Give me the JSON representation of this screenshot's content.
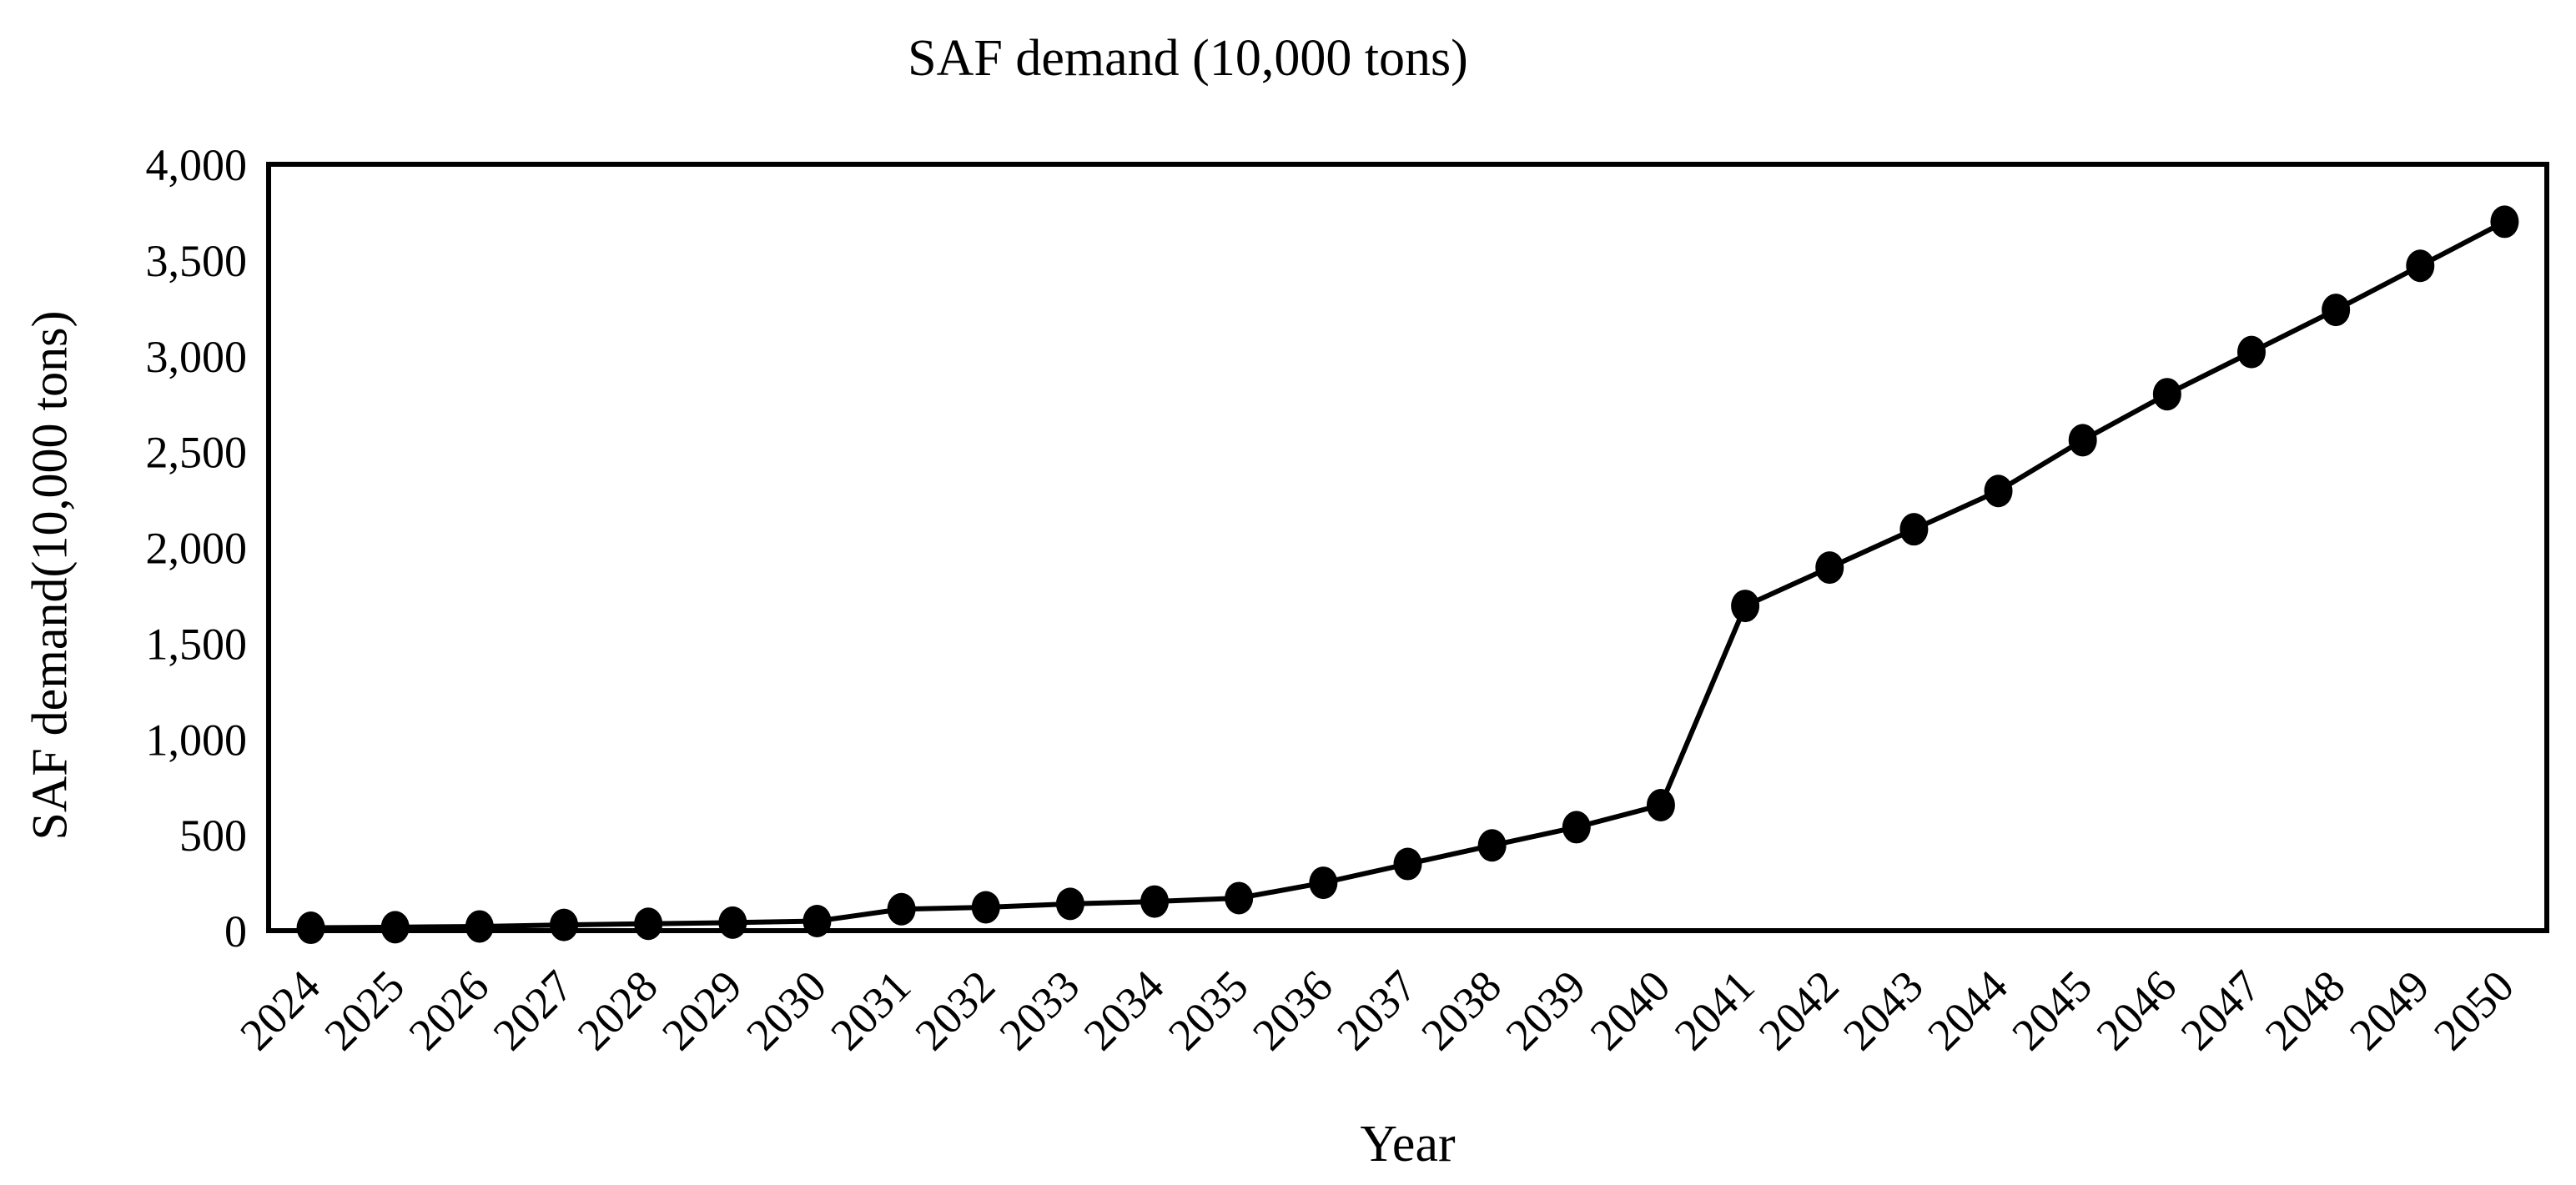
{
  "chart_data": {
    "type": "line",
    "title": "SAF demand (10,000 tons)",
    "xlabel": "Year",
    "ylabel": "SAF demand(10,000 tons)",
    "x": [
      2024,
      2025,
      2026,
      2027,
      2028,
      2029,
      2030,
      2031,
      2032,
      2033,
      2034,
      2035,
      2036,
      2037,
      2038,
      2039,
      2040,
      2041,
      2042,
      2043,
      2044,
      2045,
      2046,
      2047,
      2048,
      2049,
      2050
    ],
    "series": [
      {
        "name": "SAF demand",
        "values": [
          15,
          18,
          22,
          30,
          36,
          42,
          50,
          112,
          122,
          140,
          152,
          170,
          250,
          348,
          445,
          540,
          655,
          1695,
          1895,
          2095,
          2295,
          2560,
          2800,
          3020,
          3240,
          3470,
          3700
        ]
      }
    ],
    "ylim": [
      0,
      4000
    ],
    "yticks": [
      0,
      500,
      1000,
      1500,
      2000,
      2500,
      3000,
      3500,
      4000
    ],
    "ytick_labels": [
      "0",
      "500",
      "1,000",
      "1,500",
      "2,000",
      "2,500",
      "3,000",
      "3,500",
      "4,000"
    ],
    "xtick_rotation_deg": -45,
    "grid": false,
    "legend": null,
    "marker": "filled-circle",
    "colors": {
      "line": "#000000",
      "marker": "#000000",
      "frame": "#000000",
      "text": "#000000",
      "background": "#ffffff"
    }
  }
}
